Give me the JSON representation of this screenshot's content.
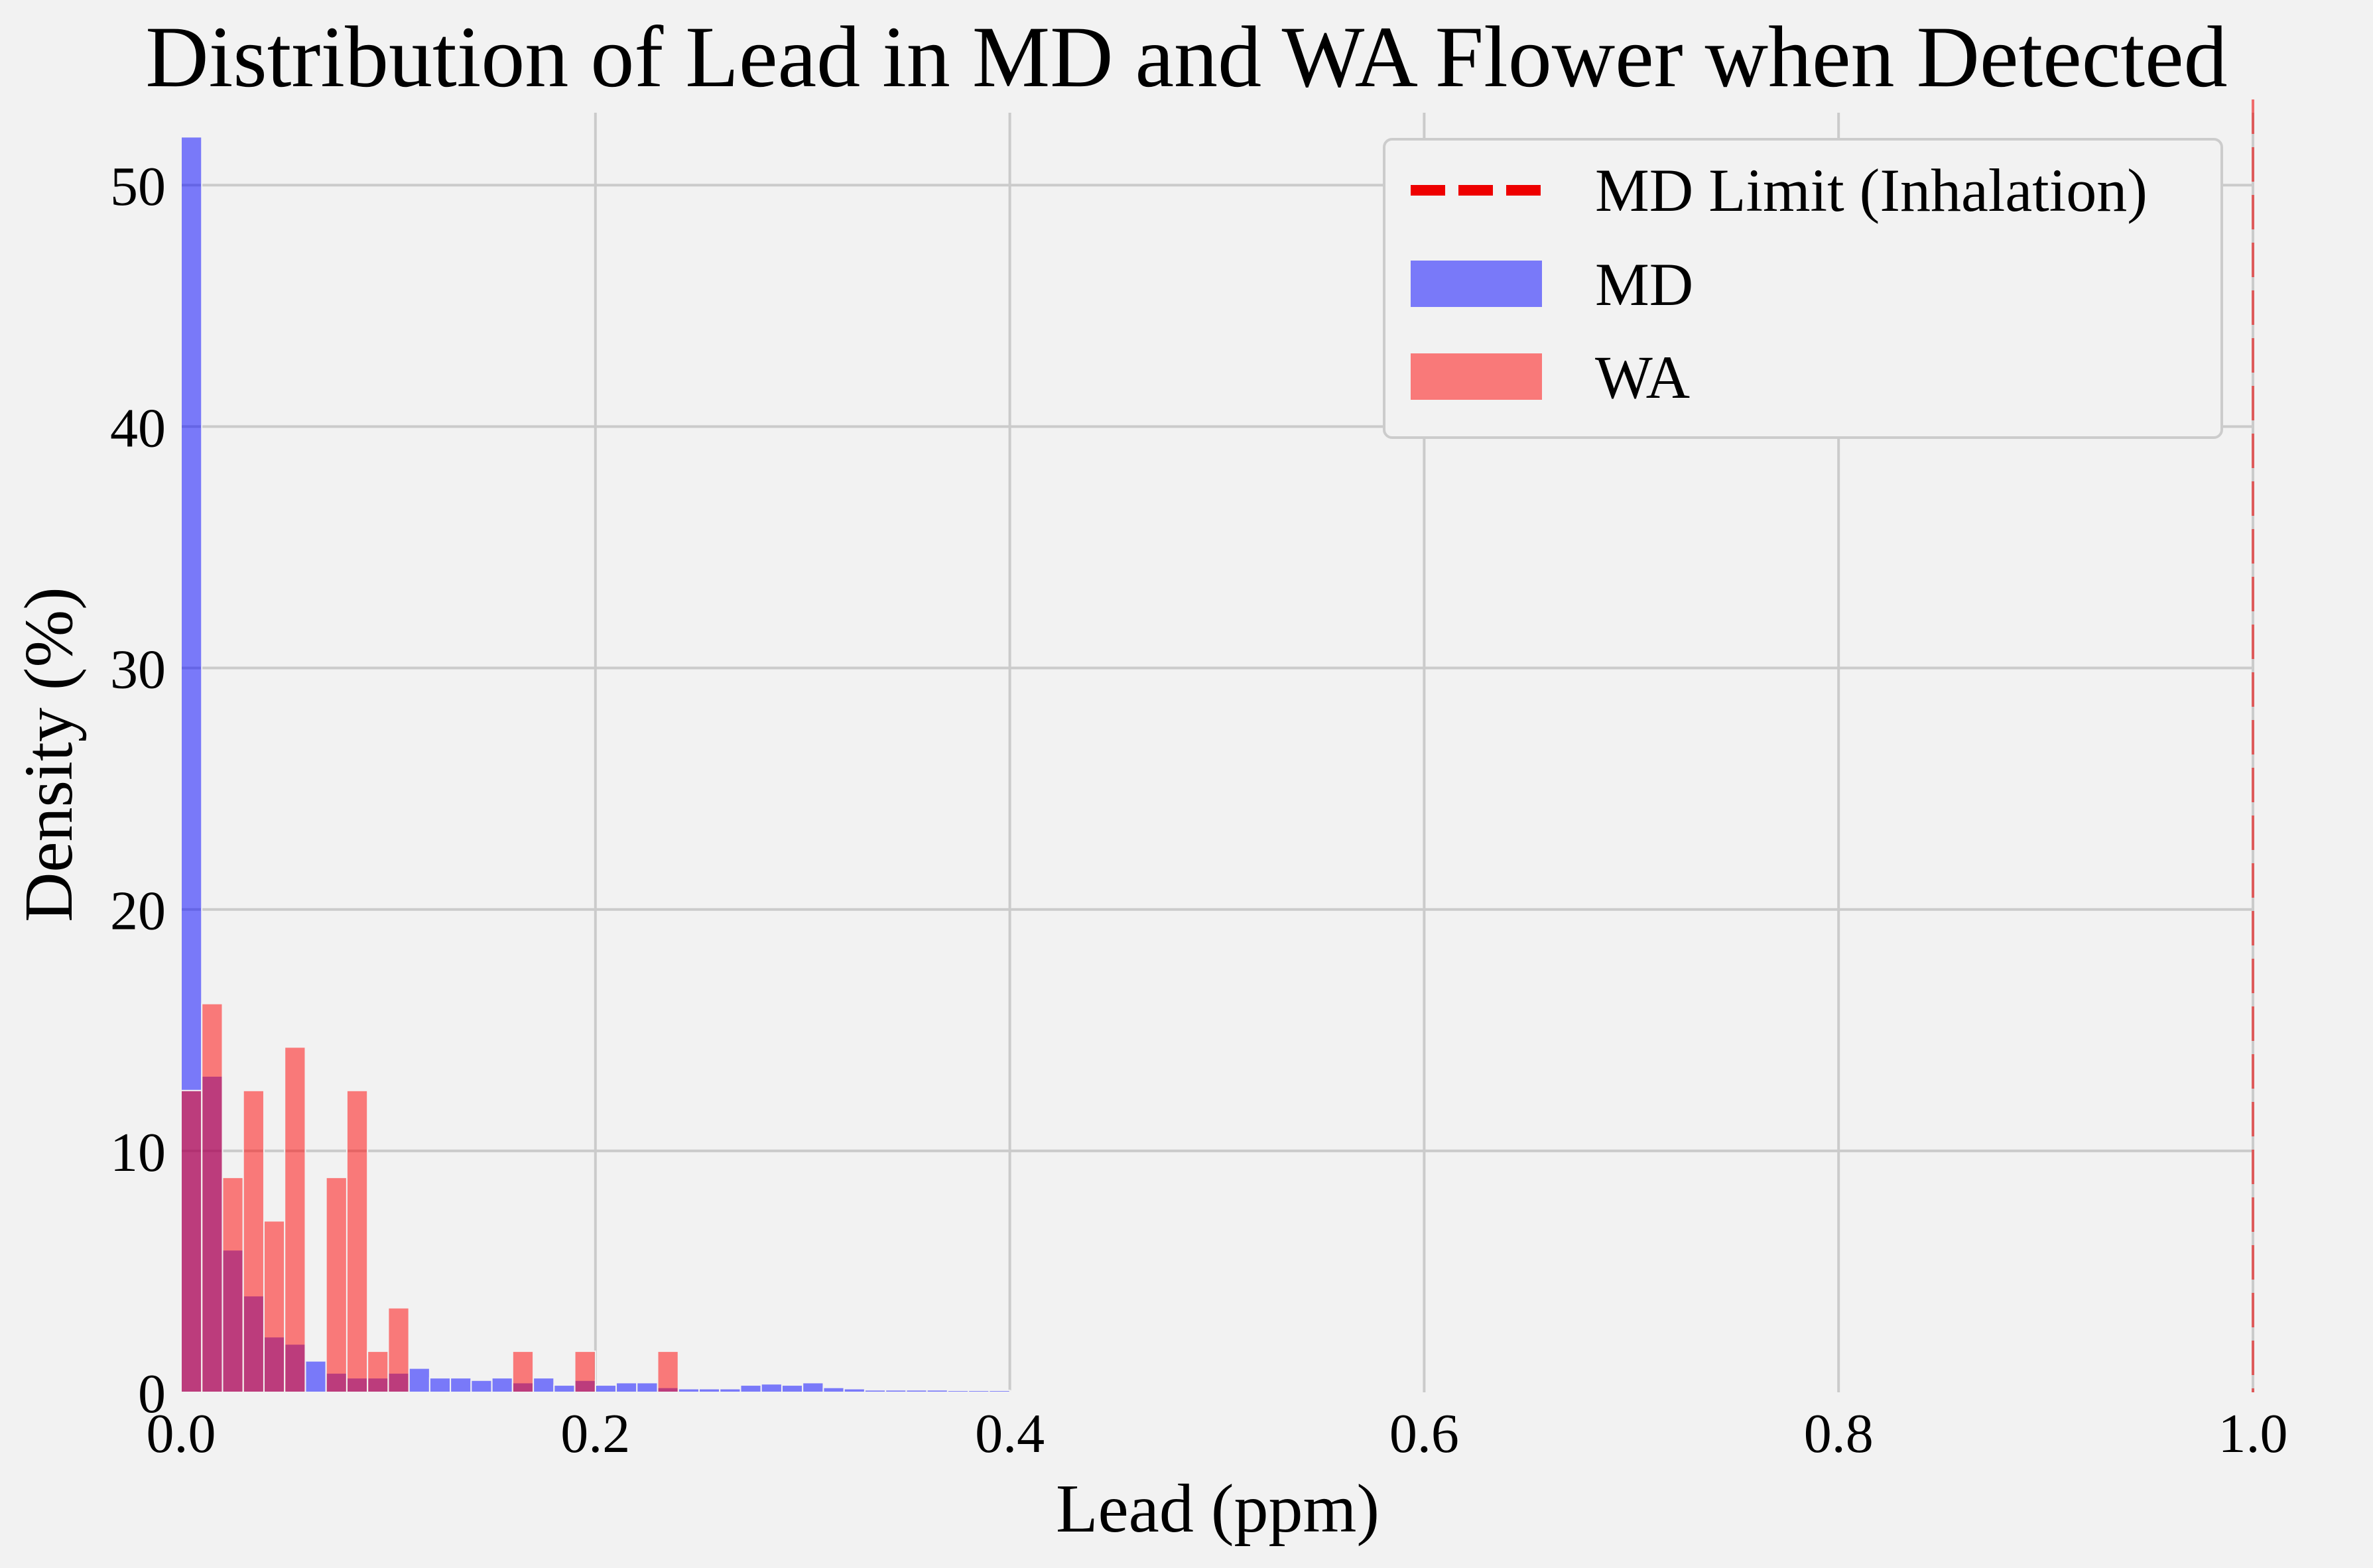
{
  "chart_data": {
    "type": "bar",
    "title": "Distribution of Lead in MD and WA Flower when Detected",
    "xlabel": "Lead (ppm)",
    "ylabel": "Density (%)",
    "xlim": [
      0.0,
      1.0
    ],
    "ylim": [
      0,
      53
    ],
    "xticks": [
      "0.0",
      "0.2",
      "0.4",
      "0.6",
      "0.8",
      "1.0"
    ],
    "yticks": [
      "0",
      "10",
      "20",
      "30",
      "40",
      "50"
    ],
    "grid": true,
    "legend_position": "top-right",
    "reference_line": {
      "name": "MD Limit (Inhalation)",
      "x": 1.0,
      "color": "#ee0000",
      "style": "dashed"
    },
    "series": [
      {
        "name": "MD",
        "color": "#0000ff",
        "opacity": 0.5,
        "bin_width": 0.01,
        "bins": [
          [
            0.0,
            52.0
          ],
          [
            0.01,
            13.1
          ],
          [
            0.02,
            5.9
          ],
          [
            0.03,
            4.0
          ],
          [
            0.04,
            2.3
          ],
          [
            0.05,
            2.0
          ],
          [
            0.06,
            1.3
          ],
          [
            0.07,
            0.8
          ],
          [
            0.08,
            0.6
          ],
          [
            0.09,
            0.6
          ],
          [
            0.1,
            0.8
          ],
          [
            0.11,
            1.0
          ],
          [
            0.12,
            0.6
          ],
          [
            0.13,
            0.6
          ],
          [
            0.14,
            0.5
          ],
          [
            0.15,
            0.6
          ],
          [
            0.16,
            0.4
          ],
          [
            0.17,
            0.6
          ],
          [
            0.18,
            0.3
          ],
          [
            0.19,
            0.5
          ],
          [
            0.2,
            0.3
          ],
          [
            0.21,
            0.4
          ],
          [
            0.22,
            0.4
          ],
          [
            0.23,
            0.2
          ],
          [
            0.24,
            0.15
          ],
          [
            0.25,
            0.15
          ],
          [
            0.26,
            0.15
          ],
          [
            0.27,
            0.3
          ],
          [
            0.28,
            0.35
          ],
          [
            0.29,
            0.3
          ],
          [
            0.3,
            0.4
          ],
          [
            0.31,
            0.2
          ],
          [
            0.32,
            0.15
          ],
          [
            0.33,
            0.1
          ],
          [
            0.34,
            0.1
          ],
          [
            0.35,
            0.1
          ],
          [
            0.36,
            0.1
          ],
          [
            0.37,
            0.08
          ],
          [
            0.38,
            0.08
          ],
          [
            0.39,
            0.08
          ],
          [
            0.4,
            0.05
          ],
          [
            0.41,
            0.05
          ],
          [
            0.43,
            0.05
          ],
          [
            0.44,
            0.05
          ]
        ]
      },
      {
        "name": "WA",
        "color": "#ff0000",
        "opacity": 0.5,
        "bin_width": 0.01,
        "bins": [
          [
            0.0,
            12.5
          ],
          [
            0.01,
            16.1
          ],
          [
            0.02,
            8.9
          ],
          [
            0.03,
            12.5
          ],
          [
            0.04,
            7.1
          ],
          [
            0.05,
            14.3
          ],
          [
            0.07,
            8.9
          ],
          [
            0.08,
            12.5
          ],
          [
            0.09,
            1.7
          ],
          [
            0.1,
            3.5
          ],
          [
            0.16,
            1.7
          ],
          [
            0.19,
            1.7
          ],
          [
            0.23,
            1.7
          ]
        ]
      }
    ]
  }
}
